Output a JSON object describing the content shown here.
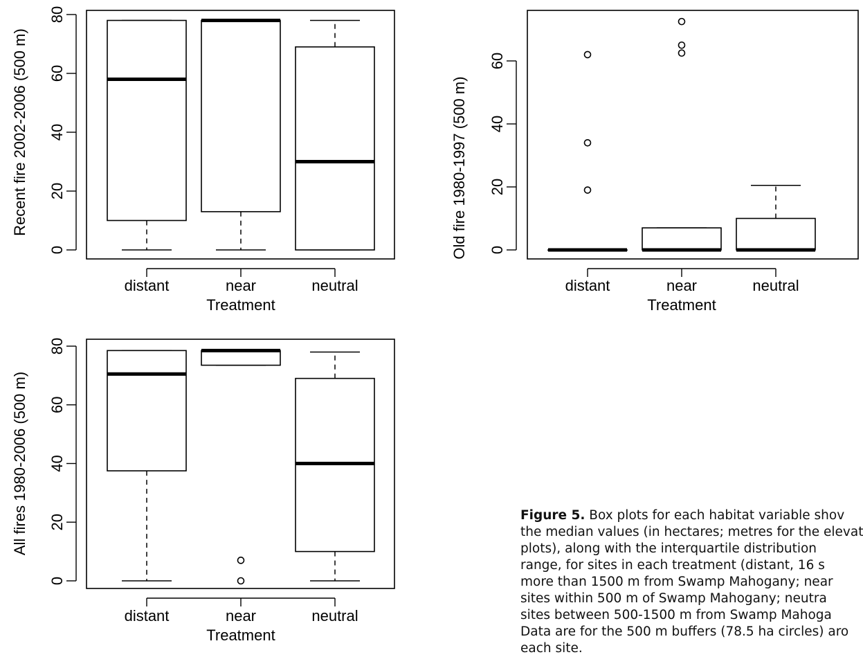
{
  "chart_data": [
    {
      "type": "box",
      "id": "recent",
      "ylabel": "Recent fire 2002-2006 (500 m)",
      "xlabel": "Treatment",
      "categories": [
        "distant",
        "near",
        "neutral"
      ],
      "yticks": [
        0,
        20,
        40,
        60,
        80
      ],
      "ylim": [
        -3,
        81
      ],
      "boxes": [
        {
          "whisker_low": 0,
          "q1": 10,
          "median": 58,
          "q3": 78,
          "whisker_high": 78,
          "outliers": []
        },
        {
          "whisker_low": 0,
          "q1": 13,
          "median": 78,
          "q3": 78,
          "whisker_high": 78,
          "outliers": []
        },
        {
          "whisker_low": 0,
          "q1": 0,
          "median": 30,
          "q3": 69,
          "whisker_high": 78,
          "outliers": []
        }
      ]
    },
    {
      "type": "box",
      "id": "old",
      "ylabel": "Old fire 1980-1997 (500 m)",
      "xlabel": "Treatment",
      "categories": [
        "distant",
        "near",
        "neutral"
      ],
      "yticks": [
        0,
        20,
        40,
        60
      ],
      "ylim": [
        -3,
        76
      ],
      "boxes": [
        {
          "whisker_low": 0,
          "q1": 0,
          "median": 0,
          "q3": 0,
          "whisker_high": 0,
          "outliers": [
            19,
            34,
            62
          ]
        },
        {
          "whisker_low": 0,
          "q1": 0,
          "median": 0,
          "q3": 7,
          "whisker_high": 7,
          "outliers": [
            62.5,
            65,
            72.5
          ]
        },
        {
          "whisker_low": 0,
          "q1": 0,
          "median": 0,
          "q3": 10,
          "whisker_high": 20.5,
          "outliers": []
        }
      ]
    },
    {
      "type": "box",
      "id": "all",
      "ylabel": "All fires 1980-2006 (500 m)",
      "xlabel": "Treatment",
      "categories": [
        "distant",
        "near",
        "neutral"
      ],
      "yticks": [
        0,
        20,
        40,
        60,
        80
      ],
      "ylim": [
        -3,
        81
      ],
      "boxes": [
        {
          "whisker_low": 0,
          "q1": 37.5,
          "median": 70.5,
          "q3": 78.5,
          "whisker_high": 78.5,
          "outliers": []
        },
        {
          "whisker_low": 73.5,
          "q1": 73.5,
          "median": 78.5,
          "q3": 78.5,
          "whisker_high": 78.5,
          "outliers": [
            0,
            7
          ]
        },
        {
          "whisker_low": 0,
          "q1": 10,
          "median": 40,
          "q3": 69,
          "whisker_high": 78,
          "outliers": []
        }
      ]
    }
  ],
  "caption": {
    "label": "Figure 5.",
    "lines": [
      " Box plots for each habitat variable shov",
      "the median values (in hectares; metres for the elevat",
      "plots), along with the interquartile distribution",
      "range, for sites in each treatment (distant, 16 s",
      "more than 1500 m from Swamp Mahogany; near",
      "sites within 500 m of Swamp Mahogany; neutra",
      "sites between 500-1500 m from Swamp Mahoga",
      "Data are for the 500 m buffers (78.5 ha circles) aro",
      "each site."
    ]
  }
}
